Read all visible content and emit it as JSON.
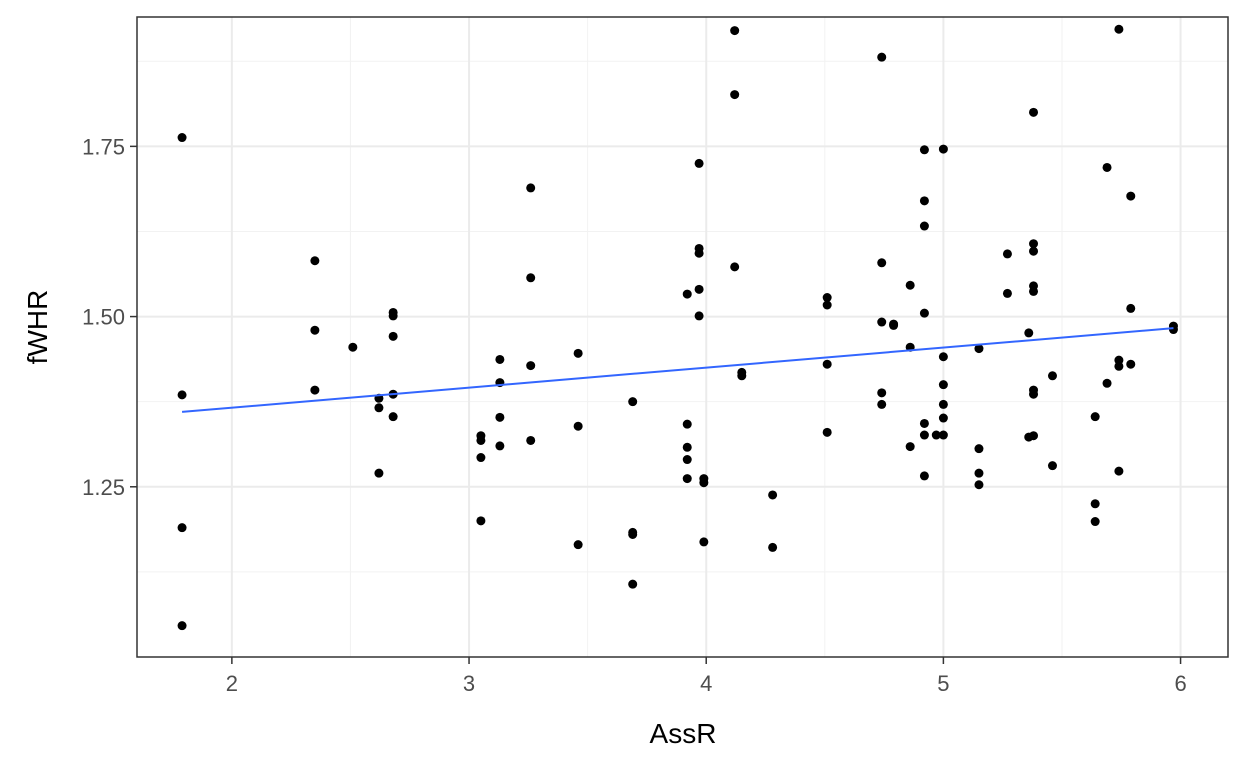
{
  "chart_data": {
    "type": "scatter",
    "title": "",
    "xlabel": "AssR",
    "ylabel": "fWHR",
    "xlim": [
      1.6,
      6.2
    ],
    "ylim": [
      1.0,
      1.94
    ],
    "x_ticks": [
      2,
      3,
      4,
      5,
      6
    ],
    "x_tick_labels": [
      "2",
      "3",
      "4",
      "5",
      "6"
    ],
    "y_ticks": [
      1.25,
      1.5,
      1.75
    ],
    "y_tick_labels": [
      "1.25",
      "1.50",
      "1.75"
    ],
    "grid": true,
    "theme": "bw",
    "point_color": "#000000",
    "trend_color": "#3366ff",
    "points": [
      [
        1.79,
        1.763
      ],
      [
        1.79,
        1.385
      ],
      [
        1.79,
        1.19
      ],
      [
        1.79,
        1.046
      ],
      [
        2.35,
        1.582
      ],
      [
        2.35,
        1.48
      ],
      [
        2.35,
        1.392
      ],
      [
        2.51,
        1.455
      ],
      [
        2.62,
        1.38
      ],
      [
        2.62,
        1.366
      ],
      [
        2.62,
        1.27
      ],
      [
        2.68,
        1.506
      ],
      [
        2.68,
        1.501
      ],
      [
        2.68,
        1.471
      ],
      [
        2.68,
        1.386
      ],
      [
        2.68,
        1.353
      ],
      [
        3.05,
        1.325
      ],
      [
        3.05,
        1.318
      ],
      [
        3.05,
        1.293
      ],
      [
        3.05,
        1.2
      ],
      [
        3.13,
        1.437
      ],
      [
        3.13,
        1.403
      ],
      [
        3.13,
        1.352
      ],
      [
        3.13,
        1.31
      ],
      [
        3.26,
        1.689
      ],
      [
        3.26,
        1.557
      ],
      [
        3.26,
        1.428
      ],
      [
        3.26,
        1.318
      ],
      [
        3.46,
        1.446
      ],
      [
        3.46,
        1.339
      ],
      [
        3.46,
        1.165
      ],
      [
        3.69,
        1.375
      ],
      [
        3.69,
        1.183
      ],
      [
        3.69,
        1.18
      ],
      [
        3.69,
        1.107
      ],
      [
        3.92,
        1.533
      ],
      [
        3.92,
        1.342
      ],
      [
        3.92,
        1.308
      ],
      [
        3.92,
        1.29
      ],
      [
        3.92,
        1.262
      ],
      [
        3.97,
        1.725
      ],
      [
        3.97,
        1.6
      ],
      [
        3.97,
        1.593
      ],
      [
        3.97,
        1.54
      ],
      [
        3.97,
        1.501
      ],
      [
        3.99,
        1.262
      ],
      [
        3.99,
        1.256
      ],
      [
        3.99,
        1.169
      ],
      [
        4.12,
        1.92
      ],
      [
        4.12,
        1.826
      ],
      [
        4.12,
        1.573
      ],
      [
        4.15,
        1.418
      ],
      [
        4.15,
        1.413
      ],
      [
        4.28,
        1.238
      ],
      [
        4.28,
        1.161
      ],
      [
        4.51,
        1.528
      ],
      [
        4.51,
        1.517
      ],
      [
        4.51,
        1.43
      ],
      [
        4.51,
        1.33
      ],
      [
        4.74,
        1.881
      ],
      [
        4.74,
        1.579
      ],
      [
        4.74,
        1.492
      ],
      [
        4.74,
        1.388
      ],
      [
        4.74,
        1.371
      ],
      [
        4.79,
        1.489
      ],
      [
        4.79,
        1.487
      ],
      [
        4.86,
        1.546
      ],
      [
        4.86,
        1.455
      ],
      [
        4.86,
        1.309
      ],
      [
        4.92,
        1.745
      ],
      [
        4.92,
        1.67
      ],
      [
        4.92,
        1.633
      ],
      [
        4.92,
        1.505
      ],
      [
        4.92,
        1.343
      ],
      [
        4.92,
        1.326
      ],
      [
        4.92,
        1.266
      ],
      [
        4.97,
        1.326
      ],
      [
        5.0,
        1.746
      ],
      [
        5.0,
        1.441
      ],
      [
        5.0,
        1.4
      ],
      [
        5.0,
        1.371
      ],
      [
        5.0,
        1.351
      ],
      [
        5.0,
        1.326
      ],
      [
        5.15,
        1.453
      ],
      [
        5.15,
        1.306
      ],
      [
        5.15,
        1.27
      ],
      [
        5.15,
        1.253
      ],
      [
        5.27,
        1.592
      ],
      [
        5.27,
        1.534
      ],
      [
        5.36,
        1.476
      ],
      [
        5.36,
        1.323
      ],
      [
        5.38,
        1.8
      ],
      [
        5.38,
        1.607
      ],
      [
        5.38,
        1.596
      ],
      [
        5.38,
        1.545
      ],
      [
        5.38,
        1.537
      ],
      [
        5.38,
        1.392
      ],
      [
        5.38,
        1.386
      ],
      [
        5.38,
        1.325
      ],
      [
        5.46,
        1.413
      ],
      [
        5.46,
        1.281
      ],
      [
        5.64,
        1.353
      ],
      [
        5.64,
        1.225
      ],
      [
        5.64,
        1.199
      ],
      [
        5.69,
        1.719
      ],
      [
        5.69,
        1.402
      ],
      [
        5.74,
        1.922
      ],
      [
        5.74,
        1.436
      ],
      [
        5.74,
        1.427
      ],
      [
        5.74,
        1.273
      ],
      [
        5.79,
        1.677
      ],
      [
        5.79,
        1.512
      ],
      [
        5.79,
        1.43
      ],
      [
        5.97,
        1.486
      ],
      [
        5.97,
        1.481
      ]
    ],
    "trend_line": {
      "x": [
        1.79,
        5.97
      ],
      "y": [
        1.36,
        1.483
      ]
    }
  }
}
